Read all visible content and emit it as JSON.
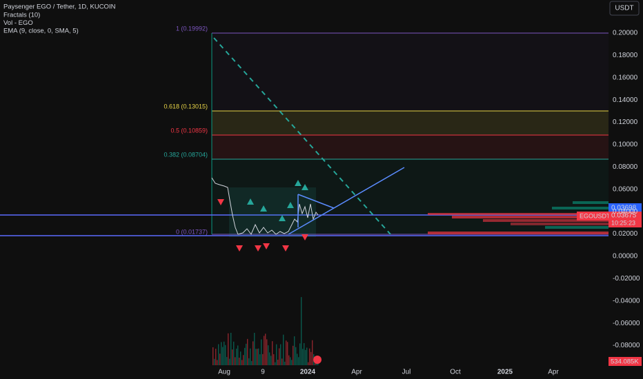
{
  "header": {
    "title": "Paysenger EGO / Tether, 1D, KUCOIN",
    "indicators": [
      "Fractals (10)",
      "Vol - EGO",
      "EMA (9, close, 0, SMA, 5)"
    ]
  },
  "currency_button": "USDT",
  "fib_levels": [
    {
      "label": "1 (0.19992)"
    },
    {
      "label": "0.618 (0.13015)"
    },
    {
      "label": "0.5 (0.10859)"
    },
    {
      "label": "0.382 (0.08704)"
    },
    {
      "label": "0 (0.01737)"
    }
  ],
  "price_axis": {
    "labels": [
      "0.20000",
      "0.18000",
      "0.16000",
      "0.14000",
      "0.12000",
      "0.10000",
      "0.08000",
      "0.06000",
      "0.04000",
      "0.02000",
      "0.00000",
      "-0.02000",
      "-0.04000",
      "-0.06000",
      "-0.08000"
    ]
  },
  "time_axis": {
    "labels": [
      "Aug",
      "9",
      "2024",
      "Apr",
      "Jul",
      "Oct",
      "2025",
      "Apr"
    ]
  },
  "price_tags": {
    "line_price": "0.03698",
    "symbol": "EGOUSDT",
    "last_price": "0.03675",
    "countdown": "10:25:23",
    "volume": "534.085K"
  }
}
